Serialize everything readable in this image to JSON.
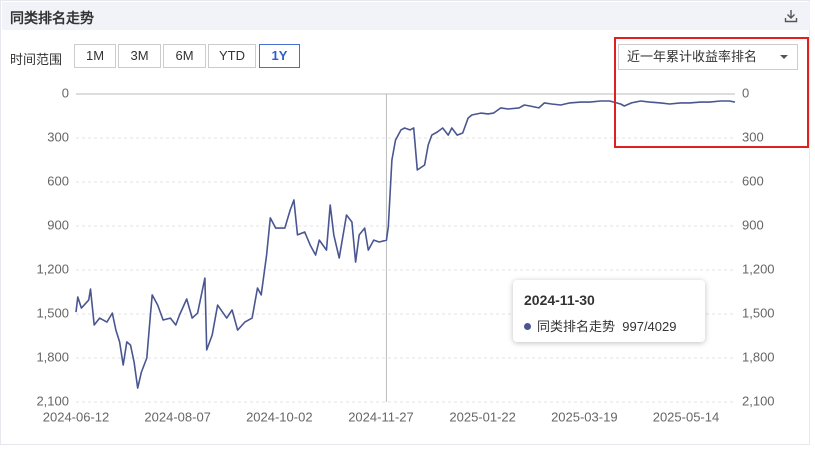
{
  "header": {
    "title": "同类排名走势"
  },
  "controls": {
    "range_label": "时间范围",
    "ranges": [
      "1M",
      "3M",
      "6M",
      "YTD",
      "1Y"
    ],
    "active": "1Y",
    "dropdown": "近一年累计收益率排名"
  },
  "chart_data": {
    "type": "line",
    "x": [
      "2024-06-12",
      "2024-06-13",
      "2024-06-15",
      "2024-06-19",
      "2024-06-20",
      "2024-06-22",
      "2024-06-25",
      "2024-06-29",
      "2024-07-02",
      "2024-07-04",
      "2024-07-06",
      "2024-07-08",
      "2024-07-10",
      "2024-07-12",
      "2024-07-14",
      "2024-07-16",
      "2024-07-18",
      "2024-07-21",
      "2024-07-23",
      "2024-07-24",
      "2024-07-27",
      "2024-07-30",
      "2024-08-03",
      "2024-08-06",
      "2024-08-08",
      "2024-08-12",
      "2024-08-15",
      "2024-08-18",
      "2024-08-22",
      "2024-08-23",
      "2024-08-26",
      "2024-08-29",
      "2024-09-03",
      "2024-09-06",
      "2024-09-09",
      "2024-09-13",
      "2024-09-17",
      "2024-09-20",
      "2024-09-22",
      "2024-09-25",
      "2024-09-27",
      "2024-09-30",
      "2024-10-05",
      "2024-10-08",
      "2024-10-10",
      "2024-10-12",
      "2024-10-16",
      "2024-10-19",
      "2024-10-22",
      "2024-10-24",
      "2024-10-28",
      "2024-10-30",
      "2024-11-01",
      "2024-11-04",
      "2024-11-08",
      "2024-11-11",
      "2024-11-13",
      "2024-11-15",
      "2024-11-18",
      "2024-11-20",
      "2024-11-23",
      "2024-11-26",
      "2024-11-30",
      "2024-12-01",
      "2024-12-03",
      "2024-12-05",
      "2024-12-08",
      "2024-12-10",
      "2024-12-13",
      "2024-12-15",
      "2024-12-17",
      "2024-12-21",
      "2024-12-23",
      "2024-12-25",
      "2024-12-28",
      "2024-12-31",
      "2025-01-03",
      "2025-01-05",
      "2025-01-08",
      "2025-01-11",
      "2025-01-14",
      "2025-01-16",
      "2025-01-21",
      "2025-01-25",
      "2025-01-28",
      "2025-02-01",
      "2025-02-05",
      "2025-02-11",
      "2025-02-14",
      "2025-02-17",
      "2025-02-22",
      "2025-02-25",
      "2025-03-01",
      "2025-03-06",
      "2025-03-11",
      "2025-03-17",
      "2025-03-22",
      "2025-03-28",
      "2025-04-02",
      "2025-04-08",
      "2025-04-10",
      "2025-04-14",
      "2025-04-19",
      "2025-04-24",
      "2025-04-30",
      "2025-05-05",
      "2025-05-11",
      "2025-05-16",
      "2025-05-22",
      "2025-05-27",
      "2025-06-02",
      "2025-06-07",
      "2025-06-10"
    ],
    "series": [
      {
        "name": "同类排名走势",
        "color": "#4a5691",
        "values": [
          1487,
          1384,
          1460,
          1405,
          1330,
          1575,
          1528,
          1555,
          1494,
          1610,
          1690,
          1848,
          1690,
          1712,
          1828,
          2005,
          1896,
          1800,
          1507,
          1370,
          1439,
          1541,
          1528,
          1575,
          1507,
          1398,
          1528,
          1494,
          1255,
          1745,
          1643,
          1439,
          1528,
          1473,
          1610,
          1555,
          1528,
          1323,
          1370,
          1098,
          845,
          914,
          914,
          791,
          723,
          961,
          941,
          1030,
          1098,
          996,
          1064,
          757,
          961,
          1118,
          825,
          873,
          1146,
          961,
          914,
          1064,
          996,
          1009,
          997,
          907,
          450,
          314,
          245,
          232,
          245,
          232,
          518,
          484,
          348,
          280,
          259,
          232,
          280,
          232,
          280,
          266,
          164,
          143,
          130,
          136,
          130,
          95,
          102,
          95,
          75,
          82,
          95,
          61,
          68,
          75,
          61,
          55,
          55,
          48,
          48,
          68,
          82,
          61,
          48,
          55,
          61,
          68,
          61,
          61,
          55,
          55,
          48,
          48,
          55
        ]
      }
    ],
    "xlim": [
      "2024-06-12",
      "2025-06-10"
    ],
    "xticks": [
      "2024-06-12",
      "2024-08-07",
      "2024-10-02",
      "2024-11-27",
      "2025-01-22",
      "2025-03-19",
      "2025-05-14"
    ],
    "ylim": [
      0,
      2100
    ],
    "y_reversed": true,
    "yticks": [
      0,
      300,
      600,
      900,
      {
        "value": 1200,
        "label": "1,200"
      },
      {
        "value": 1500,
        "label": "1,500"
      },
      {
        "value": 1800,
        "label": "1,800"
      },
      {
        "value": 2100,
        "label": "2,100"
      }
    ],
    "y2lim": [
      0,
      2100
    ],
    "y2ticks": [
      0,
      300,
      600,
      900,
      {
        "value": 1200,
        "label": "1,200"
      },
      {
        "value": 1500,
        "label": "1,500"
      },
      {
        "value": 1800,
        "label": "1,800"
      },
      {
        "value": 2100,
        "label": "2,100"
      }
    ],
    "grid": true,
    "tooltip": {
      "x": "2024-11-30",
      "label": "997/4029"
    }
  }
}
